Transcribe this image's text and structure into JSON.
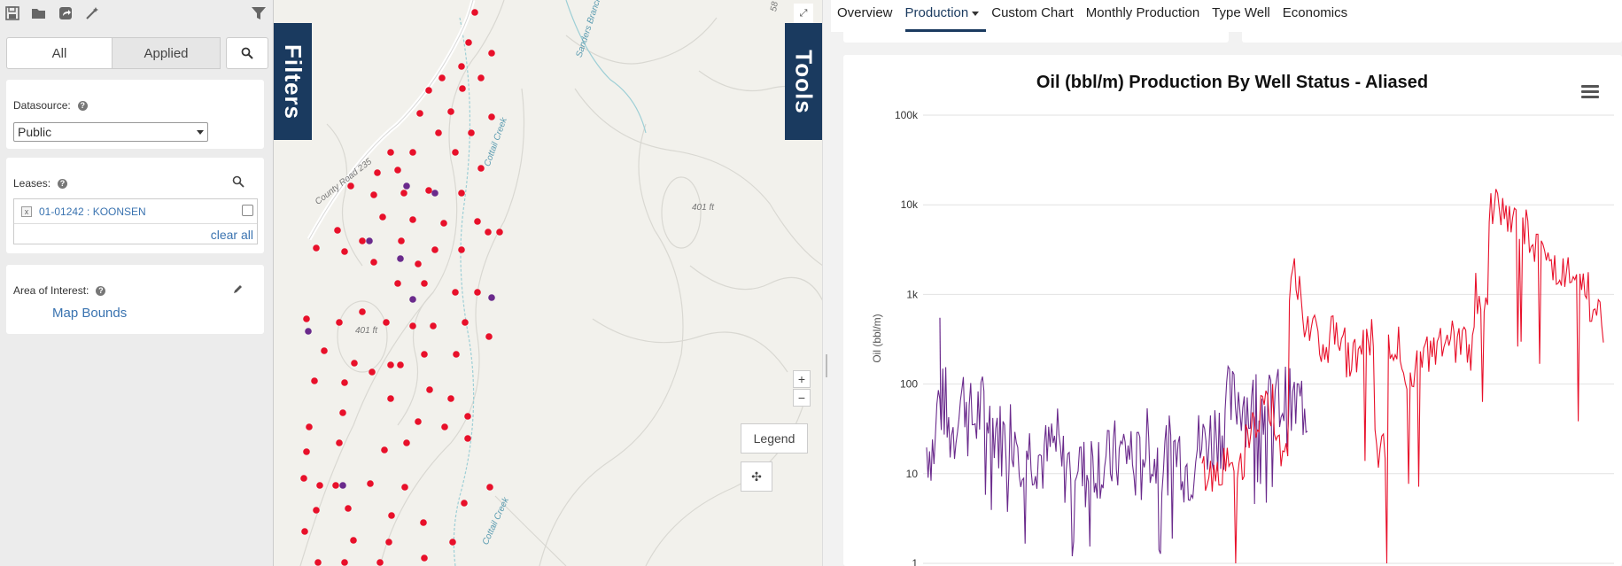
{
  "toolbar": {
    "icons": [
      "save-icon",
      "open-folder-icon",
      "share-icon",
      "magic-wand-icon",
      "filter-icon"
    ]
  },
  "filter_tabs": {
    "all": "All",
    "applied": "Applied"
  },
  "datasource": {
    "label": "Datasource:",
    "value": "Public"
  },
  "leases": {
    "label": "Leases:",
    "item": "01-01242 : KOONSEN",
    "clear_all": "clear all"
  },
  "aoi": {
    "label": "Area of Interest:",
    "value": "Map Bounds"
  },
  "map": {
    "filters_tab": "Filters",
    "tools_tab": "Tools",
    "legend_button": "Legend",
    "zoom_in": "+",
    "zoom_out": "−",
    "labels": {
      "road": "County Road 235",
      "creek1": "Cottail Creek",
      "creek2": "Sanders Branch",
      "creek3": "Cottail Creek",
      "elev1": "401 ft",
      "elev2": "401 ft",
      "corner": "58"
    },
    "colors": {
      "red_well": "#e8102a",
      "purple_well": "#6a2a8c"
    }
  },
  "nav": {
    "items": [
      "Overview",
      "Production",
      "Custom Chart",
      "Monthly Production",
      "Type Well",
      "Economics"
    ],
    "active": "Production"
  },
  "chart_data": {
    "type": "line",
    "title": "Oil (bbl/m) Production By Well Status - Aliased",
    "ylabel": "Oil (bbl/m)",
    "y_scale": "log",
    "ylim": [
      1,
      100000
    ],
    "yticks": [
      "100k",
      "10k",
      "1k",
      "100",
      "10",
      "1"
    ],
    "grid": true,
    "series": [
      {
        "color": "#6a2a8c",
        "values": [
          20,
          60,
          30,
          70,
          40,
          50,
          35,
          25,
          30,
          20,
          18,
          15,
          20,
          12,
          16,
          10,
          14,
          12,
          15,
          18,
          12,
          20,
          14,
          16,
          18,
          12,
          20,
          25,
          30,
          60,
          70,
          55,
          60,
          50,
          65,
          55,
          60,
          50
        ]
      },
      {
        "color": "#e8102a",
        "values": [
          10,
          12,
          15,
          30,
          60,
          20,
          1500,
          500,
          300,
          400,
          200,
          300,
          20,
          250,
          150,
          200,
          250,
          300,
          250,
          1000,
          10000,
          8000,
          5000,
          3000,
          2000,
          1500,
          1000,
          700,
          500
        ]
      }
    ]
  }
}
